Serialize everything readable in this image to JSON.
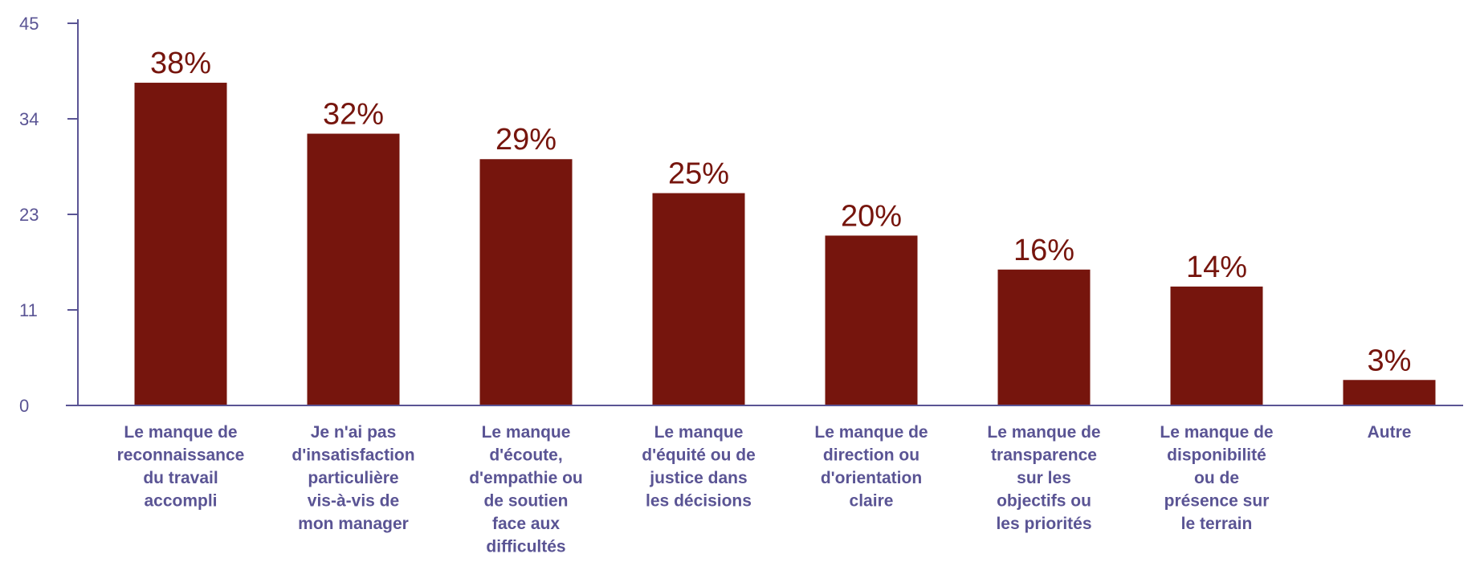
{
  "chart_data": {
    "type": "bar",
    "categories": [
      [
        "Le manque de",
        "reconnaissance",
        "du travail",
        "accompli"
      ],
      [
        "Je n'ai pas",
        "d'insatisfaction",
        "particulière",
        "vis-à-vis de",
        "mon manager"
      ],
      [
        "Le manque",
        "d'écoute,",
        "d'empathie ou",
        "de soutien",
        "face aux",
        "difficultés"
      ],
      [
        "Le manque",
        "d'équité ou de",
        "justice dans",
        "les décisions"
      ],
      [
        "Le manque de",
        "direction ou",
        "d'orientation",
        "claire"
      ],
      [
        "Le manque de",
        "transparence",
        "sur les",
        "objectifs ou",
        "les priorités"
      ],
      [
        "Le manque de",
        "disponibilité",
        "ou de",
        "présence sur",
        "le terrain"
      ],
      [
        "Autre"
      ]
    ],
    "values": [
      38,
      32,
      29,
      25,
      20,
      16,
      14,
      3
    ],
    "value_labels": [
      "38%",
      "32%",
      "29%",
      "25%",
      "20%",
      "16%",
      "14%",
      "3%"
    ],
    "y_ticks": [
      "0",
      "11",
      "23",
      "34",
      "45"
    ],
    "y_tick_values": [
      0,
      11.25,
      22.5,
      33.75,
      45
    ],
    "ylim": [
      0,
      45
    ],
    "grid": false,
    "legend": "none",
    "colors": {
      "bar": "#76150d",
      "value_label": "#76150d",
      "axis": "#5a5494",
      "tick_label": "#5a5494",
      "category_label": "#5a5494"
    }
  }
}
